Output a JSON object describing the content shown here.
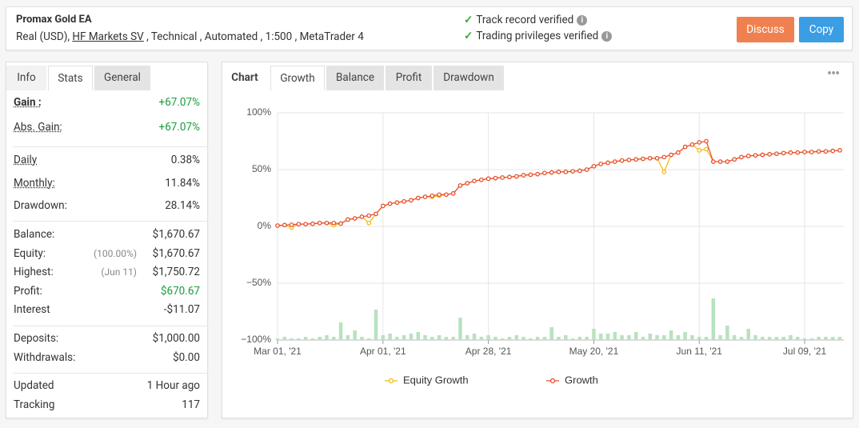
{
  "header": {
    "title": "Promax Gold EA",
    "details": [
      "Real (USD), ",
      "HF Markets SV",
      " , Technical , Automated , 1:500 , MetaTrader 4"
    ],
    "verifications": [
      "Track record verified",
      "Trading privileges verified"
    ],
    "buttons": [
      "Discuss",
      "Copy"
    ]
  },
  "left_tabs": [
    "Info",
    "Stats",
    "General"
  ],
  "stats": [
    [
      {
        "label": "Gain :",
        "value": "+67.07%",
        "value_color": "#1a9c3a"
      },
      {
        "label": "Abs. Gain:",
        "value": "+67.07%",
        "value_color": "#1a9c3a"
      }
    ],
    [
      {
        "label": "Daily",
        "value": "0.38%"
      },
      {
        "label": "Monthly:",
        "value": "11.84%"
      },
      {
        "label": "Drawdown:",
        "value": "28.14%"
      }
    ],
    [
      {
        "label": "Balance:",
        "value": "$1,670.67"
      },
      {
        "label": "Equity:",
        "note": "(100.00%)",
        "value": "$1,670.67"
      },
      {
        "label": "Highest:",
        "note": "(Jun 11)",
        "value": "$1,750.72"
      },
      {
        "label": "Profit:",
        "value": "$670.67",
        "value_color": "#1a9c3a"
      },
      {
        "label": "Interest",
        "value": "-$11.07"
      }
    ],
    [
      {
        "label": "Deposits:",
        "value": "$1,000.00"
      },
      {
        "label": "Withdrawals:",
        "value": "$0.00"
      }
    ],
    [
      {
        "label": "Updated",
        "value": "1 Hour ago"
      },
      {
        "label": "Tracking",
        "value": "117"
      }
    ]
  ],
  "chart_tabs": [
    "Chart",
    "Growth",
    "Balance",
    "Profit",
    "Drawdown"
  ],
  "chart_data": {
    "type": "line",
    "categories": [
      "Mar 01, '21",
      null,
      null,
      null,
      null,
      null,
      null,
      null,
      null,
      null,
      null,
      null,
      null,
      null,
      null,
      "Apr 01, '21",
      null,
      null,
      null,
      null,
      null,
      null,
      null,
      null,
      null,
      null,
      null,
      null,
      null,
      null,
      "Apr 28, '21",
      null,
      null,
      null,
      null,
      null,
      null,
      null,
      null,
      null,
      null,
      null,
      null,
      null,
      null,
      "May 20, '21",
      null,
      null,
      null,
      null,
      null,
      null,
      null,
      null,
      null,
      null,
      null,
      null,
      null,
      null,
      "Jun 11, '21",
      null,
      null,
      null,
      null,
      null,
      null,
      null,
      null,
      null,
      null,
      null,
      null,
      null,
      null,
      "Jul 09, '21",
      null,
      null,
      null,
      null,
      null
    ],
    "ylim": [
      -100,
      100
    ],
    "yticks": [
      {
        "value": 100,
        "label": "100%"
      },
      {
        "value": 50,
        "label": "50%"
      },
      {
        "value": 0,
        "label": "0%"
      },
      {
        "value": -50,
        "label": "−50%"
      },
      {
        "value": -100,
        "label": "−100%"
      }
    ],
    "grid": true,
    "legend": "bottom",
    "series": [
      {
        "name": "Equity Growth",
        "color": "#f2b705",
        "values": [
          0.7,
          1.2,
          -1,
          2,
          2,
          2.3,
          3,
          3,
          1,
          2.5,
          6,
          7,
          8.5,
          3,
          11,
          18,
          20,
          21,
          22,
          23,
          25,
          26,
          26,
          27,
          28,
          29,
          36,
          38,
          40,
          41,
          42,
          42.5,
          43,
          43.5,
          44,
          45,
          45.5,
          46,
          47,
          47.5,
          48,
          48,
          48.5,
          49,
          50,
          53,
          55,
          56,
          57,
          58,
          58.5,
          59,
          59.5,
          60,
          60,
          48,
          63,
          65,
          70,
          72,
          67,
          68,
          57,
          57,
          57,
          59,
          61,
          62,
          62.5,
          63,
          63.5,
          64,
          64.5,
          65,
          65,
          65.5,
          65.5,
          66,
          66,
          66.5,
          67
        ]
      },
      {
        "name": "Growth",
        "color": "#e8472b",
        "values": [
          0.7,
          1.2,
          1.5,
          2,
          2,
          2.3,
          3,
          3,
          3,
          2.5,
          6,
          7,
          8.5,
          9.5,
          11,
          18,
          20,
          21,
          22,
          23,
          25,
          26,
          27,
          28,
          28,
          29,
          36,
          38,
          40,
          41,
          42,
          42.5,
          43,
          43.5,
          44,
          45,
          45.5,
          46,
          47,
          47.5,
          48,
          48,
          48.5,
          49,
          50,
          53,
          55,
          56,
          57,
          58,
          58.5,
          59,
          59.5,
          60,
          60,
          61,
          63,
          65,
          70,
          72,
          74,
          75,
          57,
          57,
          57,
          59,
          61,
          62,
          62.5,
          63,
          63.5,
          64,
          64.5,
          65,
          65,
          65.5,
          65.5,
          66,
          66,
          66.5,
          67
        ]
      }
    ],
    "bars": {
      "color": "#b8e2bf",
      "ylim": [
        0,
        40
      ],
      "values": [
        1,
        2,
        1,
        1,
        2,
        1,
        2,
        3,
        2,
        11,
        3,
        6,
        2,
        1,
        19,
        3,
        4,
        2,
        3,
        4,
        5,
        3,
        2,
        3,
        2,
        2,
        14,
        3,
        4,
        2,
        3,
        2,
        1,
        2,
        3,
        2,
        1,
        2,
        2,
        8,
        2,
        3,
        1,
        2,
        2,
        7,
        4,
        4,
        5,
        3,
        3,
        5,
        2,
        4,
        3,
        3,
        6,
        3,
        5,
        3,
        2,
        2,
        26,
        3,
        9,
        3,
        2,
        7,
        3,
        2,
        2,
        2,
        2,
        3,
        2,
        1,
        1,
        2,
        2,
        2,
        2
      ]
    }
  }
}
